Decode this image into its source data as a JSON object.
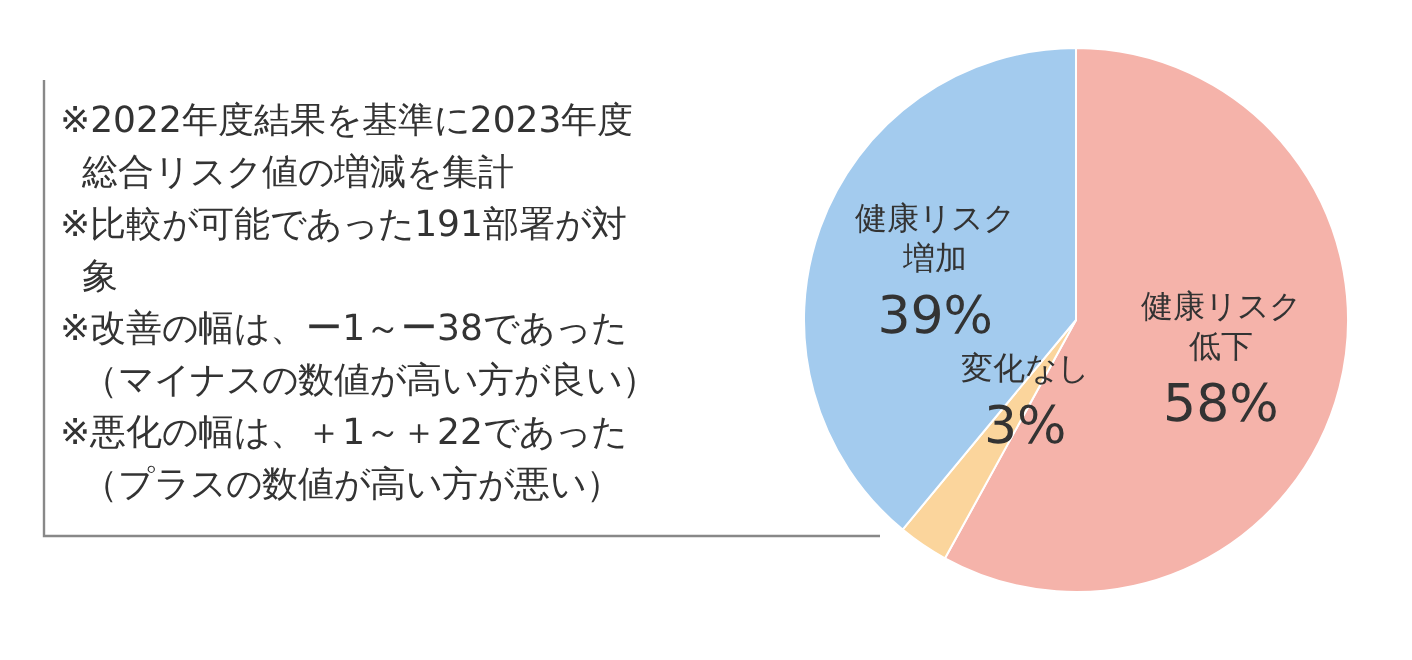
{
  "chart_data": {
    "type": "pie",
    "categories": [
      "健康リスク低下",
      "変化なし",
      "健康リスク増加"
    ],
    "values": [
      58,
      3,
      39
    ],
    "value_labels": [
      "58%",
      "3%",
      "39%"
    ],
    "colors": [
      "#f5b3aa",
      "#fbd59c",
      "#a3cbee"
    ],
    "legend": false,
    "annotations": [
      "※2022年度結果を基準に2023年度総合リスク値の増減を集計",
      "※比較が可能であった191部署が対象",
      "※改善の幅は、ー1～ー38であった（マイナスの数値が高い方が良い）",
      "※悪化の幅は、＋1～＋22であった（プラスの数値が高い方が悪い）"
    ]
  }
}
